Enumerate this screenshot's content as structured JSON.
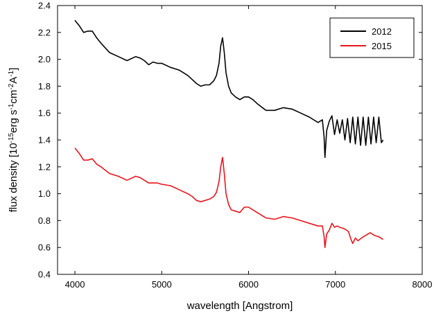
{
  "chart_data": {
    "type": "line",
    "title": "",
    "xlabel": "wavelength [Angstrom]",
    "ylabel": {
      "parts": [
        {
          "text": "flux density [10",
          "sup": false
        },
        {
          "text": "-15",
          "sup": true
        },
        {
          "text": "erg s",
          "sup": false
        },
        {
          "text": "-1",
          "sup": true
        },
        {
          "text": "cm",
          "sup": false
        },
        {
          "text": "-2",
          "sup": true
        },
        {
          "text": "A",
          "sup": false
        },
        {
          "text": "-1",
          "sup": true
        },
        {
          "text": "]",
          "sup": false
        }
      ]
    },
    "xlim": [
      3800,
      8000
    ],
    "ylim": [
      0.4,
      2.4
    ],
    "xticks": [
      4000,
      5000,
      6000,
      7000,
      8000
    ],
    "xtick_labels": [
      "4000",
      "5000",
      "6000",
      "7000",
      "8000"
    ],
    "yticks": [
      0.4,
      0.6,
      0.8,
      1.0,
      1.2,
      1.4,
      1.6,
      1.8,
      2.0,
      2.2,
      2.4
    ],
    "ytick_labels": [
      "0.4",
      "0.6",
      "0.8",
      "1.0",
      "1.2",
      "1.4",
      "1.6",
      "1.8",
      "2.0",
      "2.2",
      "2.4"
    ],
    "grid": false,
    "legend_position": "top-right",
    "series": [
      {
        "name": "2012",
        "color": "#000000",
        "x": [
          4000,
          4050,
          4100,
          4150,
          4200,
          4250,
          4300,
          4400,
          4500,
          4600,
          4700,
          4750,
          4800,
          4850,
          4900,
          4950,
          5000,
          5100,
          5200,
          5300,
          5350,
          5400,
          5450,
          5500,
          5550,
          5600,
          5630,
          5660,
          5680,
          5700,
          5720,
          5740,
          5770,
          5800,
          5850,
          5900,
          5950,
          6000,
          6050,
          6100,
          6200,
          6300,
          6400,
          6500,
          6600,
          6700,
          6800,
          6850,
          6870,
          6880,
          6900,
          6930,
          6960,
          6990,
          7020,
          7050,
          7080,
          7110,
          7140,
          7170,
          7200,
          7230,
          7260,
          7290,
          7320,
          7350,
          7380,
          7410,
          7440,
          7470,
          7500,
          7530,
          7550
        ],
        "y": [
          2.29,
          2.25,
          2.2,
          2.21,
          2.21,
          2.16,
          2.12,
          2.05,
          2.02,
          1.99,
          2.02,
          2.01,
          1.99,
          1.96,
          1.98,
          1.97,
          1.97,
          1.94,
          1.92,
          1.88,
          1.85,
          1.82,
          1.8,
          1.81,
          1.81,
          1.84,
          1.88,
          1.97,
          2.1,
          2.16,
          2.05,
          1.9,
          1.8,
          1.75,
          1.72,
          1.7,
          1.72,
          1.72,
          1.7,
          1.67,
          1.62,
          1.62,
          1.64,
          1.63,
          1.6,
          1.57,
          1.53,
          1.55,
          1.42,
          1.27,
          1.47,
          1.54,
          1.58,
          1.44,
          1.55,
          1.45,
          1.55,
          1.4,
          1.56,
          1.38,
          1.57,
          1.37,
          1.57,
          1.36,
          1.57,
          1.36,
          1.57,
          1.37,
          1.57,
          1.38,
          1.57,
          1.38,
          1.4
        ]
      },
      {
        "name": "2015",
        "color": "#e8141a",
        "x": [
          4000,
          4050,
          4100,
          4150,
          4200,
          4250,
          4300,
          4400,
          4500,
          4600,
          4700,
          4750,
          4800,
          4850,
          4900,
          4950,
          5000,
          5100,
          5200,
          5300,
          5350,
          5400,
          5450,
          5500,
          5550,
          5600,
          5630,
          5660,
          5680,
          5700,
          5720,
          5740,
          5770,
          5800,
          5850,
          5900,
          5950,
          6000,
          6050,
          6100,
          6200,
          6300,
          6400,
          6500,
          6600,
          6700,
          6800,
          6850,
          6870,
          6880,
          6900,
          6930,
          6960,
          6990,
          7020,
          7050,
          7100,
          7150,
          7180,
          7200,
          7230,
          7260,
          7300,
          7350,
          7400,
          7450,
          7500,
          7550
        ],
        "y": [
          1.34,
          1.3,
          1.25,
          1.25,
          1.26,
          1.22,
          1.2,
          1.15,
          1.13,
          1.1,
          1.13,
          1.12,
          1.1,
          1.08,
          1.08,
          1.08,
          1.07,
          1.06,
          1.03,
          1.0,
          0.98,
          0.95,
          0.94,
          0.95,
          0.96,
          0.98,
          1.01,
          1.09,
          1.2,
          1.27,
          1.15,
          1.0,
          0.92,
          0.88,
          0.87,
          0.86,
          0.9,
          0.9,
          0.88,
          0.86,
          0.82,
          0.81,
          0.83,
          0.82,
          0.8,
          0.78,
          0.76,
          0.76,
          0.68,
          0.6,
          0.7,
          0.73,
          0.78,
          0.75,
          0.76,
          0.75,
          0.74,
          0.72,
          0.66,
          0.63,
          0.67,
          0.65,
          0.67,
          0.69,
          0.71,
          0.69,
          0.68,
          0.66
        ]
      }
    ]
  }
}
